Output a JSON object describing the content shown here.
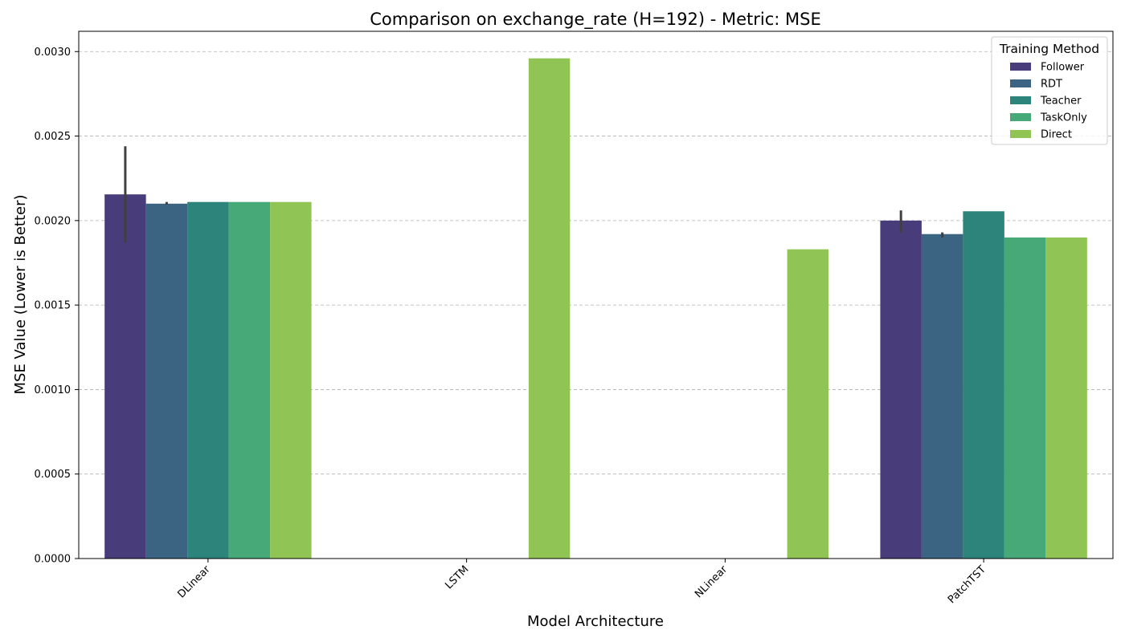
{
  "chart_data": {
    "type": "bar",
    "title": "Comparison on exchange_rate (H=192) - Metric: MSE",
    "xlabel": "Model Architecture",
    "ylabel": "MSE Value (Lower is Better)",
    "ylim": [
      0,
      0.00312
    ],
    "yticks": [
      0.0,
      0.0005,
      0.001,
      0.0015,
      0.002,
      0.0025,
      0.003
    ],
    "ytick_labels": [
      "0.0000",
      "0.0005",
      "0.0010",
      "0.0015",
      "0.0020",
      "0.0025",
      "0.0030"
    ],
    "grid": true,
    "legend_title": "Training Method",
    "legend_position": "top-right",
    "categories": [
      "DLinear",
      "LSTM",
      "NLinear",
      "PatchTST"
    ],
    "series": [
      {
        "name": "Follower",
        "color": "#483d7a",
        "values": [
          0.002155,
          null,
          null,
          0.002
        ],
        "error": [
          [
            0.00187,
            0.00244
          ],
          null,
          null,
          [
            0.00193,
            0.00206
          ]
        ]
      },
      {
        "name": "RDT",
        "color": "#3b6483",
        "values": [
          0.0021,
          null,
          null,
          0.00192
        ],
        "error": [
          [
            0.002095,
            0.00211
          ],
          null,
          null,
          [
            0.0019,
            0.00193
          ]
        ]
      },
      {
        "name": "Teacher",
        "color": "#2d847b",
        "values": [
          0.00211,
          null,
          null,
          0.002055
        ],
        "error": [
          null,
          null,
          null,
          null
        ]
      },
      {
        "name": "TaskOnly",
        "color": "#47a977",
        "values": [
          0.00211,
          null,
          null,
          0.0019
        ],
        "error": [
          null,
          null,
          null,
          null
        ]
      },
      {
        "name": "Direct",
        "color": "#90c555",
        "values": [
          0.00211,
          0.00296,
          0.00183,
          0.0019
        ],
        "error": [
          null,
          null,
          null,
          null
        ]
      }
    ]
  }
}
